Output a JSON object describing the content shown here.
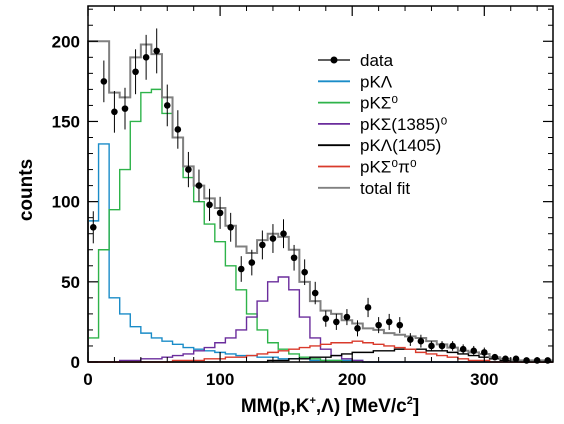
{
  "chart_data": {
    "type": "line",
    "xlabel": {
      "pre": "MM(p,K",
      "sup1": "+",
      "mid": ",Λ) [MeV/c",
      "sup2": "2",
      "post": "]"
    },
    "ylabel": "counts",
    "xlim": [
      0,
      352
    ],
    "ylim": [
      0,
      222
    ],
    "xticks": [
      0,
      100,
      200,
      300
    ],
    "yticks": [
      0,
      50,
      100,
      150,
      200
    ],
    "grid": false,
    "legend_position": "top-right",
    "bin_width": 8,
    "bin_start": 0,
    "series": [
      {
        "name": "data",
        "kind": "points",
        "color": "#000000",
        "x": [
          4,
          12,
          20,
          28,
          36,
          44,
          52,
          60,
          68,
          76,
          84,
          92,
          100,
          108,
          116,
          124,
          132,
          140,
          148,
          156,
          164,
          172,
          180,
          188,
          196,
          204,
          212,
          220,
          228,
          236,
          244,
          252,
          260,
          268,
          276,
          284,
          292,
          300,
          308,
          316,
          324,
          332,
          340,
          348
        ],
        "y": [
          84,
          175,
          156,
          158,
          181,
          190,
          194,
          160,
          145,
          120,
          110,
          98,
          93,
          84,
          58,
          62,
          73,
          77,
          80,
          65,
          56,
          43,
          27,
          25,
          28,
          21,
          34,
          23,
          25,
          23,
          14,
          13,
          10,
          10,
          10,
          8,
          7,
          6,
          3,
          2,
          2,
          1,
          1,
          1
        ],
        "err": [
          10,
          13,
          13,
          13,
          14,
          14,
          14,
          13,
          12,
          11,
          10,
          10,
          10,
          9,
          8,
          8,
          9,
          9,
          9,
          8,
          8,
          7,
          5,
          5,
          5,
          5,
          6,
          5,
          5,
          5,
          4,
          4,
          3,
          3,
          3,
          3,
          3,
          3,
          2,
          2,
          2,
          1,
          1,
          1
        ]
      },
      {
        "name": "pKΛ",
        "kind": "step",
        "color": "#1a8cc8",
        "values": [
          88,
          136,
          40,
          30,
          22,
          18,
          15,
          13,
          11,
          9,
          8,
          7,
          6,
          5,
          4,
          4,
          3,
          3,
          2,
          2,
          2,
          1,
          1,
          1,
          1,
          1,
          0,
          0,
          0,
          0,
          0,
          0,
          0,
          0,
          0,
          0,
          0,
          0,
          0,
          0,
          0,
          0,
          0,
          0
        ]
      },
      {
        "name": "pKΣ⁰",
        "kind": "step",
        "color": "#2eb34a",
        "values": [
          15,
          70,
          95,
          120,
          150,
          168,
          170,
          155,
          140,
          115,
          100,
          86,
          75,
          60,
          45,
          30,
          20,
          12,
          8,
          5,
          3,
          2,
          1,
          1,
          0,
          0,
          0,
          0,
          0,
          0,
          0,
          0,
          0,
          0,
          0,
          0,
          0,
          0,
          0,
          0,
          0,
          0,
          0,
          0
        ]
      },
      {
        "name": "pKΣ(1385)⁰",
        "kind": "step",
        "color": "#6a2c9c",
        "values": [
          0,
          0,
          0,
          1,
          1,
          2,
          2,
          3,
          4,
          5,
          7,
          9,
          12,
          15,
          20,
          28,
          38,
          50,
          53,
          45,
          28,
          15,
          8,
          4,
          2,
          1,
          0,
          0,
          0,
          0,
          0,
          0,
          0,
          0,
          0,
          0,
          0,
          0,
          0,
          0,
          0,
          0,
          0,
          0
        ]
      },
      {
        "name": "pKΛ(1405)",
        "kind": "step",
        "color": "#000000",
        "values": [
          0,
          0,
          0,
          0,
          0,
          0,
          0,
          0,
          0,
          0,
          0,
          0,
          0,
          0,
          0,
          0,
          0,
          1,
          1,
          2,
          2,
          3,
          3,
          4,
          5,
          6,
          6,
          7,
          7,
          8,
          8,
          8,
          7,
          7,
          6,
          5,
          4,
          3,
          2,
          1,
          1,
          0,
          0,
          0
        ]
      },
      {
        "name": "pKΣ⁰π⁰",
        "kind": "step",
        "color": "#d93a2b",
        "values": [
          0,
          0,
          0,
          0,
          0,
          0,
          0,
          0,
          1,
          1,
          1,
          2,
          2,
          3,
          3,
          4,
          5,
          6,
          7,
          8,
          9,
          10,
          11,
          12,
          12,
          13,
          12,
          11,
          10,
          9,
          8,
          6,
          5,
          4,
          3,
          2,
          1,
          1,
          0,
          0,
          0,
          0,
          0,
          0
        ]
      },
      {
        "name": "total fit",
        "kind": "step",
        "color": "#808080",
        "values": [
          200,
          200,
          168,
          165,
          190,
          198,
          192,
          165,
          140,
          122,
          110,
          102,
          96,
          85,
          72,
          68,
          76,
          80,
          78,
          70,
          50,
          38,
          32,
          30,
          26,
          24,
          21,
          20,
          18,
          17,
          16,
          15,
          13,
          11,
          9,
          7,
          6,
          5,
          3,
          2,
          1,
          1,
          1,
          1
        ]
      }
    ]
  }
}
